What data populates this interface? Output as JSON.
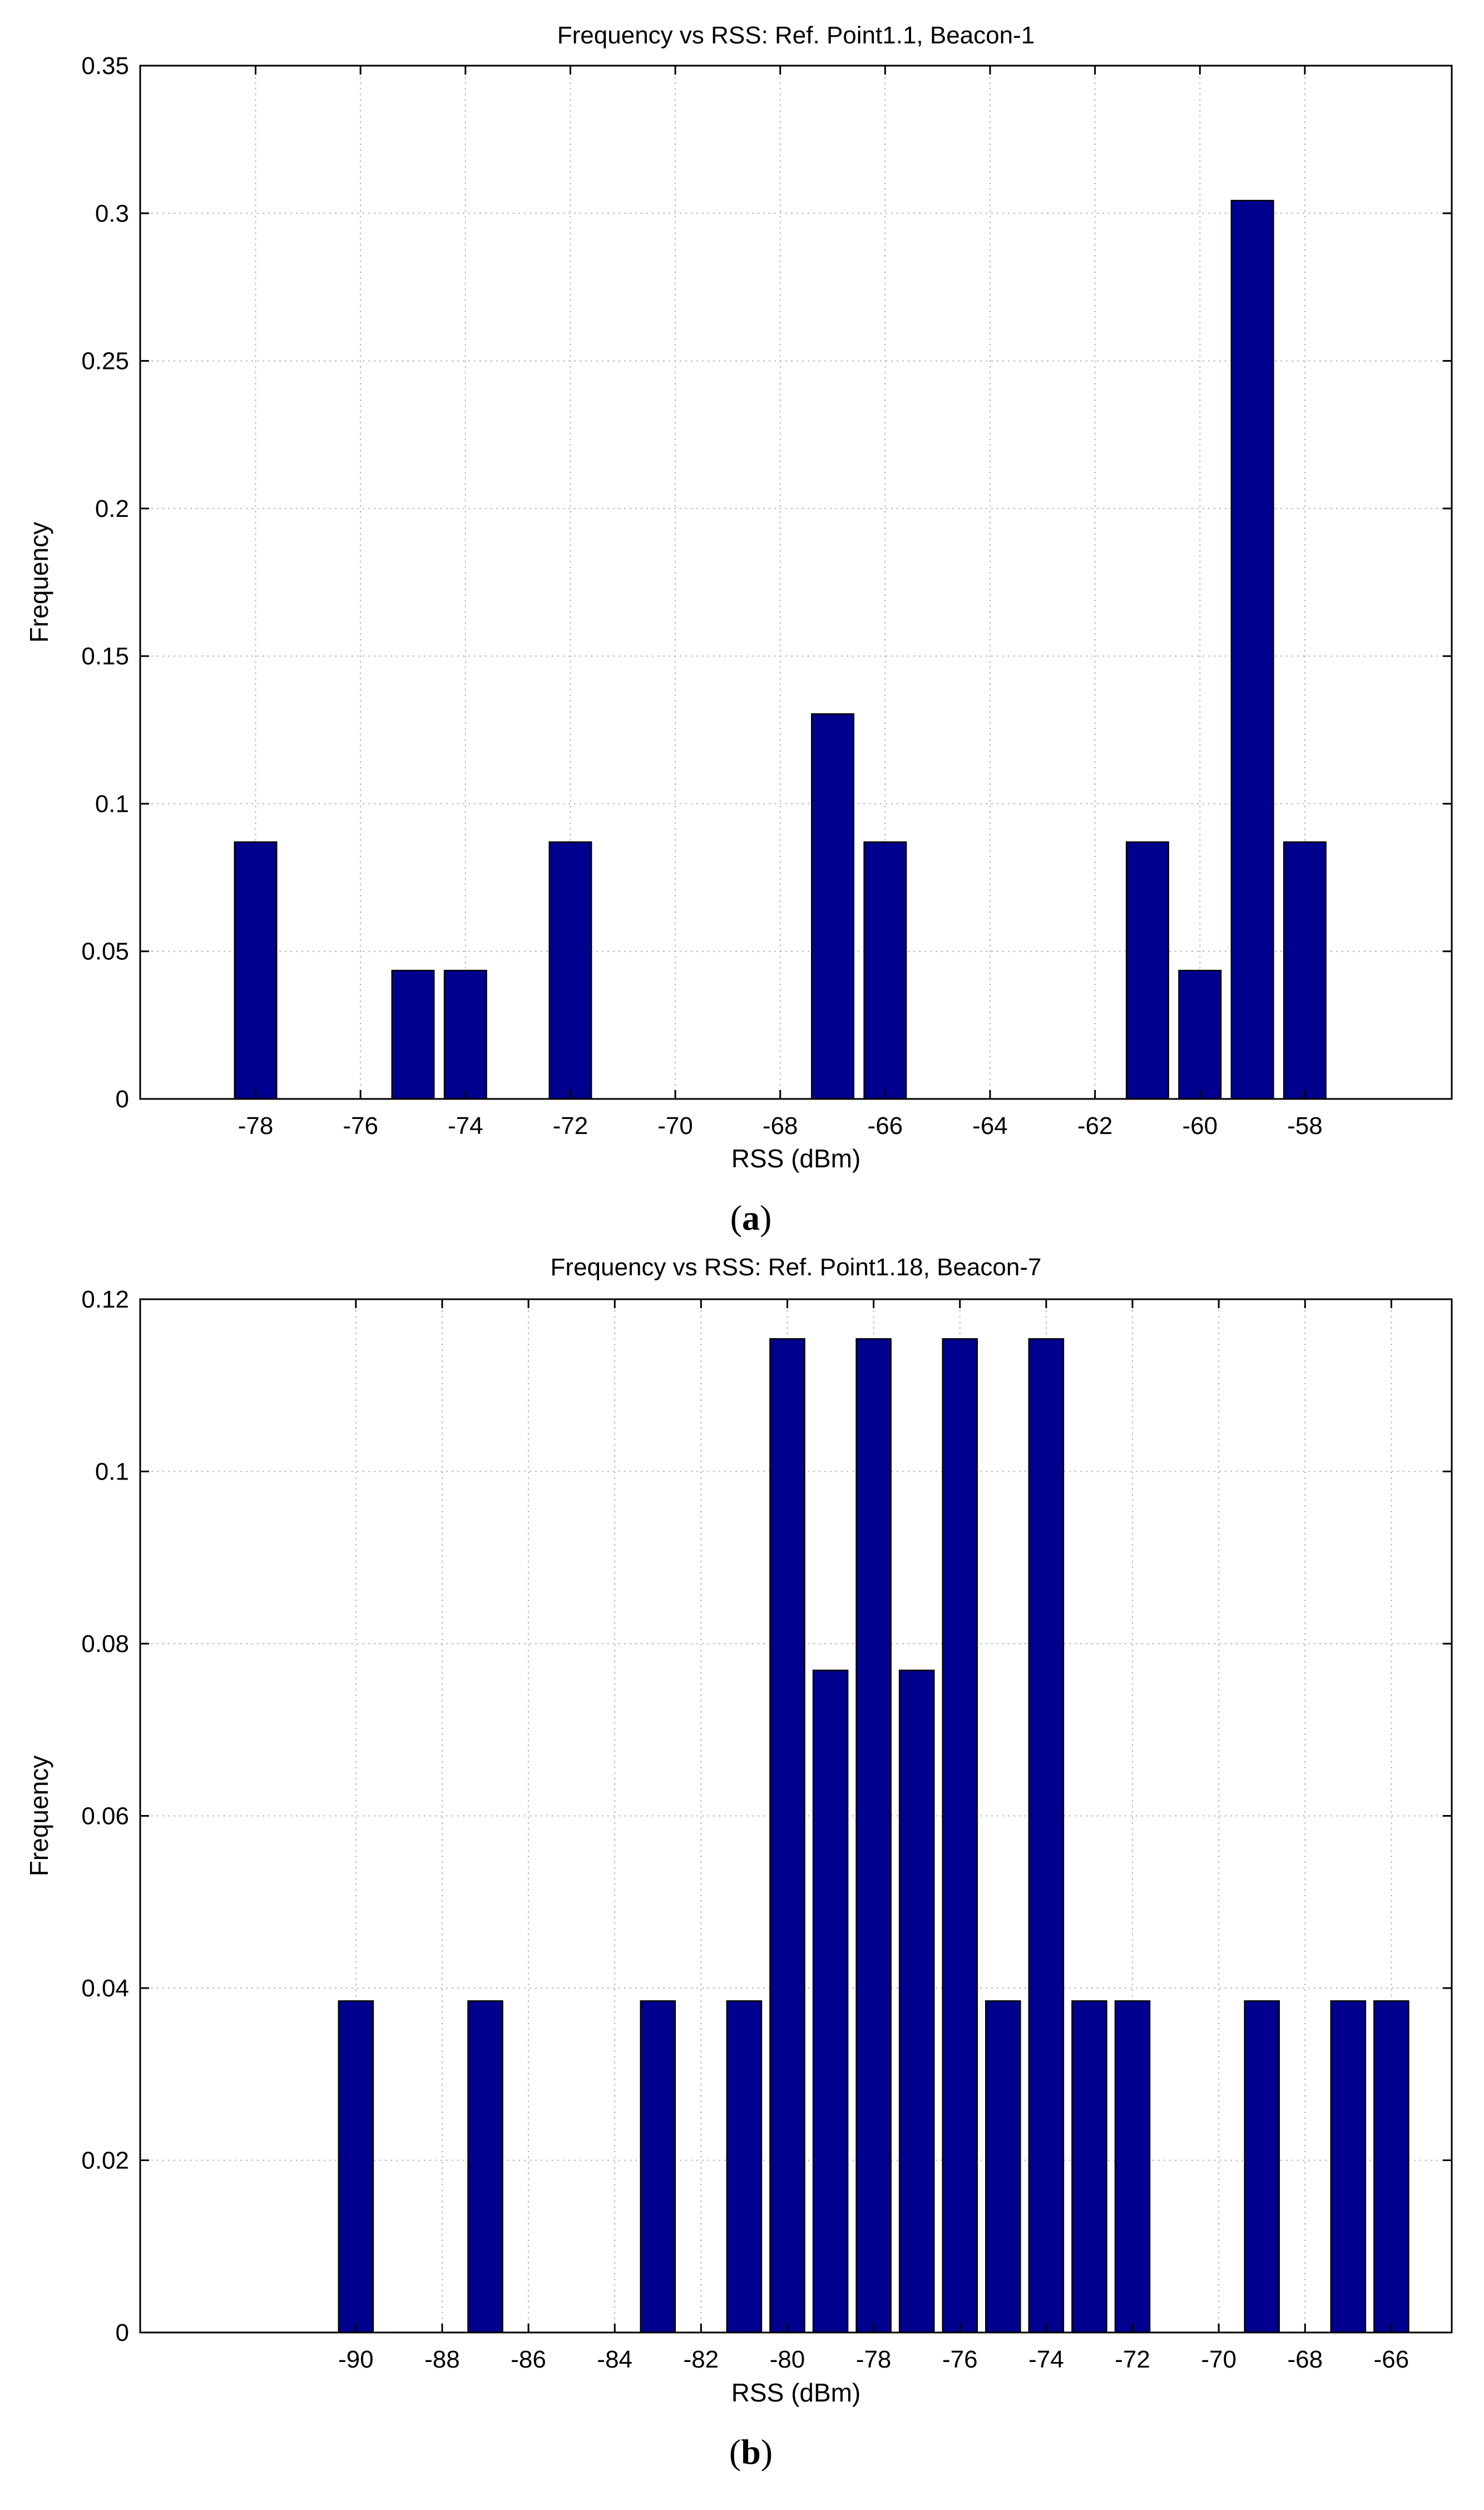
{
  "chart_data": [
    {
      "type": "bar",
      "title": "Frequency vs RSS: Ref. Point1.1, Beacon-1",
      "xlabel": "RSS (dBm)",
      "ylabel": "Frequency",
      "caption_letter": "a",
      "xlim": [
        -80.2,
        -55.2
      ],
      "ylim": [
        0,
        0.35
      ],
      "xticks": [
        -78,
        -76,
        -74,
        -72,
        -70,
        -68,
        -66,
        -64,
        -62,
        -60,
        -58
      ],
      "yticks": [
        0,
        0.05,
        0.1,
        0.15,
        0.2,
        0.25,
        0.3,
        0.35
      ],
      "ytick_labels": [
        "0",
        "0.05",
        "0.1",
        "0.15",
        "0.2",
        "0.25",
        "0.3",
        "0.35"
      ],
      "x": [
        -78,
        -75,
        -74,
        -72,
        -67,
        -66,
        -61,
        -60,
        -59,
        -58
      ],
      "values": [
        0.087,
        0.0435,
        0.0435,
        0.087,
        0.1304,
        0.087,
        0.087,
        0.0435,
        0.3043,
        0.087
      ],
      "bar_color": "#00008f",
      "grid": true
    },
    {
      "type": "bar",
      "title": "Frequency vs RSS: Ref. Point1.18, Beacon-7",
      "xlabel": "RSS (dBm)",
      "ylabel": "Frequency",
      "caption_letter": "b",
      "xlim": [
        -95.0,
        -64.6
      ],
      "ylim": [
        0,
        0.12
      ],
      "xticks": [
        -90,
        -88,
        -86,
        -84,
        -82,
        -80,
        -78,
        -76,
        -74,
        -72,
        -70,
        -68,
        -66
      ],
      "yticks": [
        0,
        0.02,
        0.04,
        0.06,
        0.08,
        0.1,
        0.12
      ],
      "ytick_labels": [
        "0",
        "0.02",
        "0.04",
        "0.06",
        "0.08",
        "0.1",
        "0.12"
      ],
      "x": [
        -90,
        -87,
        -83,
        -81,
        -80,
        -79,
        -78,
        -77,
        -76,
        -75,
        -74,
        -73,
        -72,
        -69,
        -67,
        -66
      ],
      "values": [
        0.0385,
        0.0385,
        0.0385,
        0.0385,
        0.1154,
        0.0769,
        0.1154,
        0.0769,
        0.1154,
        0.0385,
        0.1154,
        0.0385,
        0.0385,
        0.0385,
        0.0385,
        0.0385
      ],
      "bar_color": "#00008f",
      "grid": true
    }
  ]
}
